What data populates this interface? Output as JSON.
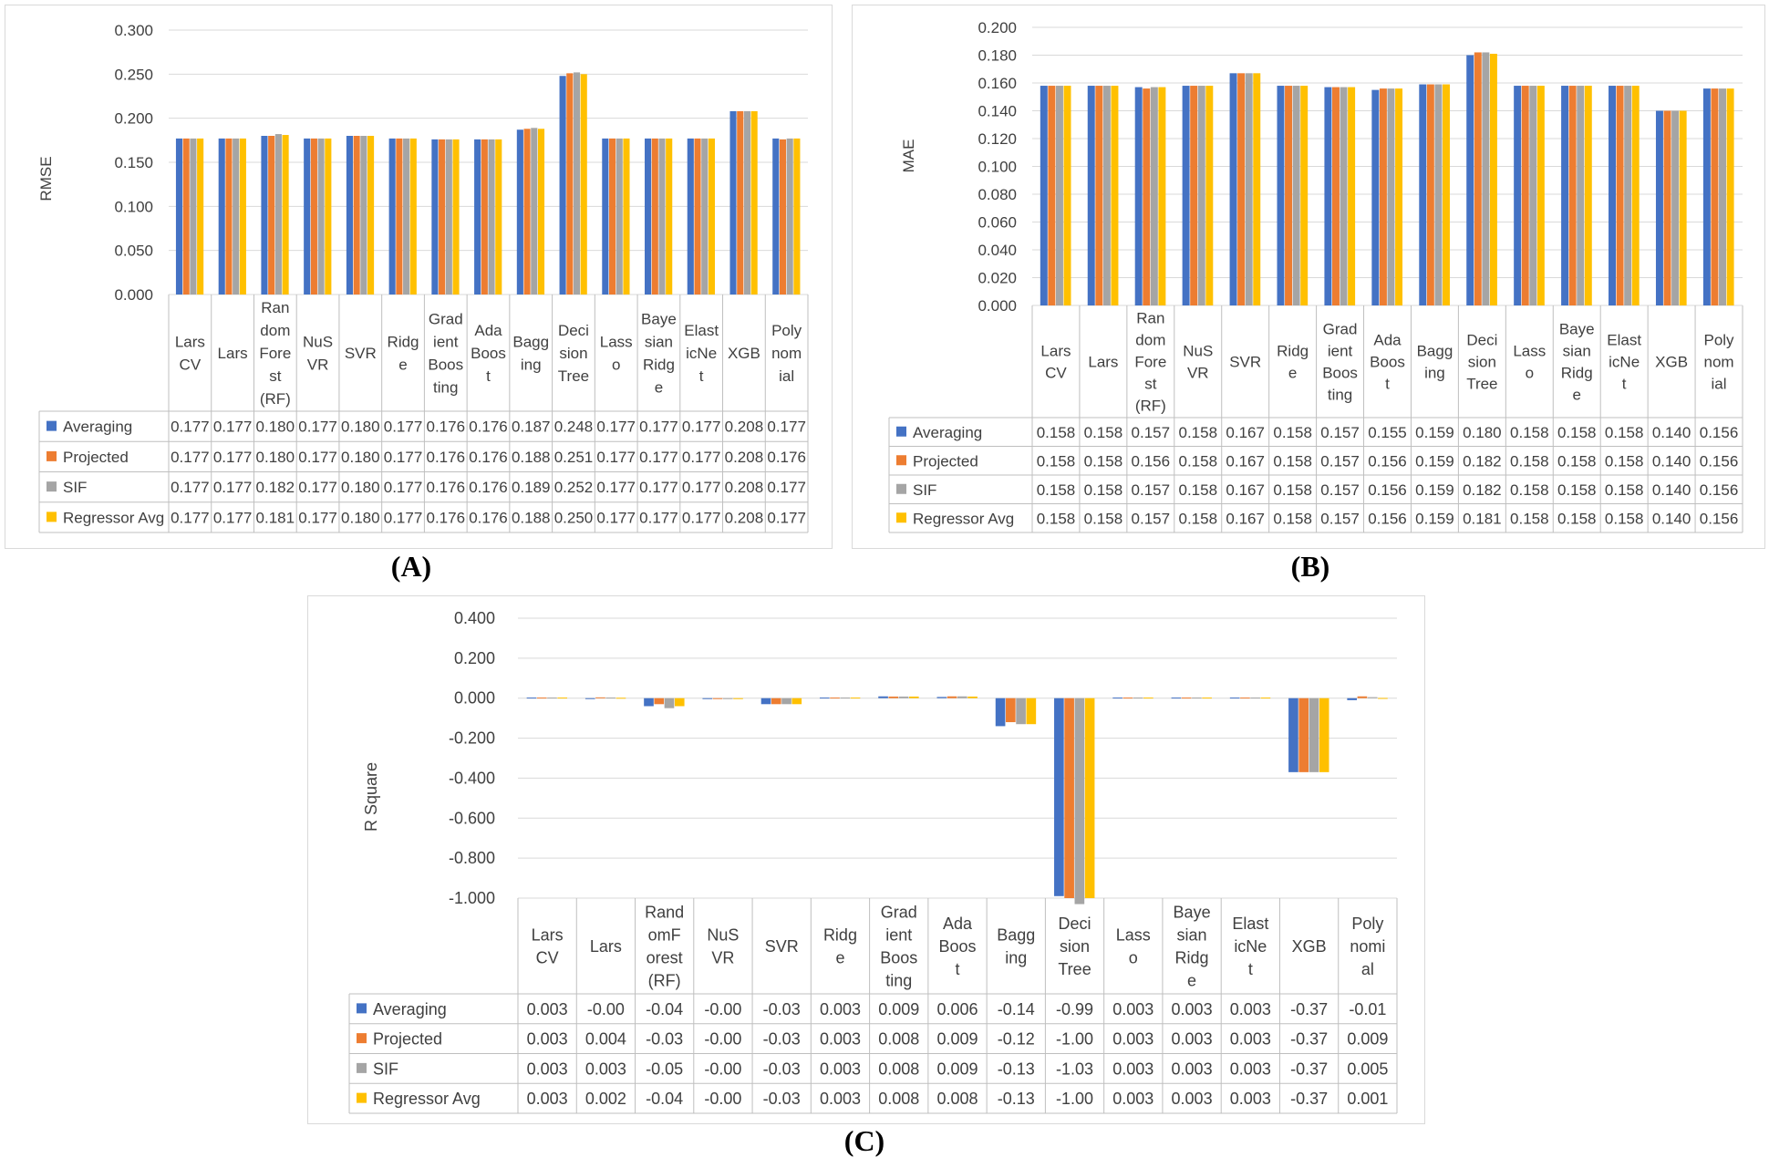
{
  "captions": {
    "a": "(A)",
    "b": "(B)",
    "c": "(C)"
  },
  "series_colors": [
    "#4472c4",
    "#ed7d31",
    "#a5a5a5",
    "#ffc000"
  ],
  "chart_data": [
    {
      "type": "bar",
      "ylabel": "RMSE",
      "ylim": [
        0,
        0.3
      ],
      "yticks": [
        "0.000",
        "0.050",
        "0.100",
        "0.150",
        "0.200",
        "0.250",
        "0.300"
      ],
      "yticks_values": [
        0,
        0.05,
        0.1,
        0.15,
        0.2,
        0.25,
        0.3
      ],
      "grid": true,
      "categories": [
        "Lars\nCV",
        "Lars",
        "Ran\ndom\nFore\nst\n(RF)",
        "NuS\nVR",
        "SVR",
        "Ridg\ne",
        "Grad\nient\nBoos\nting",
        "Ada\nBoos\nt",
        "Bagg\ning",
        "Deci\nsion\nTree",
        "Lass\no",
        "Baye\nsian\nRidg\ne",
        "Elast\nicNe\nt",
        "XGB",
        "Poly\nnom\nial"
      ],
      "series": [
        {
          "name": "Averaging",
          "values": [
            0.177,
            0.177,
            0.18,
            0.177,
            0.18,
            0.177,
            0.176,
            0.176,
            0.187,
            0.248,
            0.177,
            0.177,
            0.177,
            0.208,
            0.177
          ],
          "labels": [
            "0.177",
            "0.177",
            "0.180",
            "0.177",
            "0.180",
            "0.177",
            "0.176",
            "0.176",
            "0.187",
            "0.248",
            "0.177",
            "0.177",
            "0.177",
            "0.208",
            "0.177"
          ]
        },
        {
          "name": "Projected",
          "values": [
            0.177,
            0.177,
            0.18,
            0.177,
            0.18,
            0.177,
            0.176,
            0.176,
            0.188,
            0.251,
            0.177,
            0.177,
            0.177,
            0.208,
            0.176
          ],
          "labels": [
            "0.177",
            "0.177",
            "0.180",
            "0.177",
            "0.180",
            "0.177",
            "0.176",
            "0.176",
            "0.188",
            "0.251",
            "0.177",
            "0.177",
            "0.177",
            "0.208",
            "0.176"
          ]
        },
        {
          "name": "SIF",
          "values": [
            0.177,
            0.177,
            0.182,
            0.177,
            0.18,
            0.177,
            0.176,
            0.176,
            0.189,
            0.252,
            0.177,
            0.177,
            0.177,
            0.208,
            0.177
          ],
          "labels": [
            "0.177",
            "0.177",
            "0.182",
            "0.177",
            "0.180",
            "0.177",
            "0.176",
            "0.176",
            "0.189",
            "0.252",
            "0.177",
            "0.177",
            "0.177",
            "0.208",
            "0.177"
          ]
        },
        {
          "name": "Regressor Avg",
          "values": [
            0.177,
            0.177,
            0.181,
            0.177,
            0.18,
            0.177,
            0.176,
            0.176,
            0.188,
            0.25,
            0.177,
            0.177,
            0.177,
            0.208,
            0.177
          ],
          "labels": [
            "0.177",
            "0.177",
            "0.181",
            "0.177",
            "0.180",
            "0.177",
            "0.176",
            "0.176",
            "0.188",
            "0.250",
            "0.177",
            "0.177",
            "0.177",
            "0.208",
            "0.177"
          ]
        }
      ]
    },
    {
      "type": "bar",
      "ylabel": "MAE",
      "ylim": [
        0,
        0.2
      ],
      "yticks": [
        "0.000",
        "0.020",
        "0.040",
        "0.060",
        "0.080",
        "0.100",
        "0.120",
        "0.140",
        "0.160",
        "0.180",
        "0.200"
      ],
      "yticks_values": [
        0,
        0.02,
        0.04,
        0.06,
        0.08,
        0.1,
        0.12,
        0.14,
        0.16,
        0.18,
        0.2
      ],
      "grid": true,
      "categories": [
        "Lars\nCV",
        "Lars",
        "Ran\ndom\nFore\nst\n(RF)",
        "NuS\nVR",
        "SVR",
        "Ridg\ne",
        "Grad\nient\nBoos\nting",
        "Ada\nBoos\nt",
        "Bagg\ning",
        "Deci\nsion\nTree",
        "Lass\no",
        "Baye\nsian\nRidg\ne",
        "Elast\nicNe\nt",
        "XGB",
        "Poly\nnom\nial"
      ],
      "series": [
        {
          "name": "Averaging",
          "values": [
            0.158,
            0.158,
            0.157,
            0.158,
            0.167,
            0.158,
            0.157,
            0.155,
            0.159,
            0.18,
            0.158,
            0.158,
            0.158,
            0.14,
            0.156
          ],
          "labels": [
            "0.158",
            "0.158",
            "0.157",
            "0.158",
            "0.167",
            "0.158",
            "0.157",
            "0.155",
            "0.159",
            "0.180",
            "0.158",
            "0.158",
            "0.158",
            "0.140",
            "0.156"
          ]
        },
        {
          "name": "Projected",
          "values": [
            0.158,
            0.158,
            0.156,
            0.158,
            0.167,
            0.158,
            0.157,
            0.156,
            0.159,
            0.182,
            0.158,
            0.158,
            0.158,
            0.14,
            0.156
          ],
          "labels": [
            "0.158",
            "0.158",
            "0.156",
            "0.158",
            "0.167",
            "0.158",
            "0.157",
            "0.156",
            "0.159",
            "0.182",
            "0.158",
            "0.158",
            "0.158",
            "0.140",
            "0.156"
          ]
        },
        {
          "name": "SIF",
          "values": [
            0.158,
            0.158,
            0.157,
            0.158,
            0.167,
            0.158,
            0.157,
            0.156,
            0.159,
            0.182,
            0.158,
            0.158,
            0.158,
            0.14,
            0.156
          ],
          "labels": [
            "0.158",
            "0.158",
            "0.157",
            "0.158",
            "0.167",
            "0.158",
            "0.157",
            "0.156",
            "0.159",
            "0.182",
            "0.158",
            "0.158",
            "0.158",
            "0.140",
            "0.156"
          ]
        },
        {
          "name": "Regressor Avg",
          "values": [
            0.158,
            0.158,
            0.157,
            0.158,
            0.167,
            0.158,
            0.157,
            0.156,
            0.159,
            0.181,
            0.158,
            0.158,
            0.158,
            0.14,
            0.156
          ],
          "labels": [
            "0.158",
            "0.158",
            "0.157",
            "0.158",
            "0.167",
            "0.158",
            "0.157",
            "0.156",
            "0.159",
            "0.181",
            "0.158",
            "0.158",
            "0.158",
            "0.140",
            "0.156"
          ]
        }
      ]
    },
    {
      "type": "bar",
      "ylabel": "R Square",
      "ylim": [
        -1,
        0.4
      ],
      "yticks": [
        "-1.000",
        "-0.800",
        "-0.600",
        "-0.400",
        "-0.200",
        "0.000",
        "0.200",
        "0.400"
      ],
      "yticks_values": [
        -1,
        -0.8,
        -0.6,
        -0.4,
        -0.2,
        0,
        0.2,
        0.4
      ],
      "grid": true,
      "categories": [
        "Lars\nCV",
        "Lars",
        "Rand\nomF\norest\n(RF)",
        "NuS\nVR",
        "SVR",
        "Ridg\ne",
        "Grad\nient\nBoos\nting",
        "Ada\nBoos\nt",
        "Bagg\ning",
        "Deci\nsion\nTree",
        "Lass\no",
        "Baye\nsian\nRidg\ne",
        "Elast\nicNe\nt",
        "XGB",
        "Poly\nnomi\nal"
      ],
      "series": [
        {
          "name": "Averaging",
          "values": [
            0.003,
            -0.002,
            -0.04,
            -0.003,
            -0.03,
            0.003,
            0.009,
            0.006,
            -0.14,
            -0.99,
            0.003,
            0.003,
            0.003,
            -0.37,
            -0.01
          ],
          "labels": [
            "0.003",
            "-0.00",
            "-0.04",
            "-0.00",
            "-0.03",
            "0.003",
            "0.009",
            "0.006",
            "-0.14",
            "-0.99",
            "0.003",
            "0.003",
            "0.003",
            "-0.37",
            "-0.01"
          ]
        },
        {
          "name": "Projected",
          "values": [
            0.003,
            0.004,
            -0.03,
            -0.003,
            -0.03,
            0.003,
            0.008,
            0.009,
            -0.12,
            -1.0,
            0.003,
            0.003,
            0.003,
            -0.37,
            0.009
          ],
          "labels": [
            "0.003",
            "0.004",
            "-0.03",
            "-0.00",
            "-0.03",
            "0.003",
            "0.008",
            "0.009",
            "-0.12",
            "-1.00",
            "0.003",
            "0.003",
            "0.003",
            "-0.37",
            "0.009"
          ]
        },
        {
          "name": "SIF",
          "values": [
            0.003,
            0.003,
            -0.05,
            -0.003,
            -0.03,
            0.003,
            0.008,
            0.009,
            -0.13,
            -1.03,
            0.003,
            0.003,
            0.003,
            -0.37,
            0.005
          ],
          "labels": [
            "0.003",
            "0.003",
            "-0.05",
            "-0.00",
            "-0.03",
            "0.003",
            "0.008",
            "0.009",
            "-0.13",
            "-1.03",
            "0.003",
            "0.003",
            "0.003",
            "-0.37",
            "0.005"
          ]
        },
        {
          "name": "Regressor Avg",
          "values": [
            0.003,
            0.002,
            -0.04,
            -0.003,
            -0.03,
            0.003,
            0.008,
            0.008,
            -0.13,
            -1.0,
            0.003,
            0.003,
            0.003,
            -0.37,
            0.001
          ],
          "labels": [
            "0.003",
            "0.002",
            "-0.04",
            "-0.00",
            "-0.03",
            "0.003",
            "0.008",
            "0.008",
            "-0.13",
            "-1.00",
            "0.003",
            "0.003",
            "0.003",
            "-0.37",
            "0.001"
          ]
        }
      ]
    }
  ]
}
